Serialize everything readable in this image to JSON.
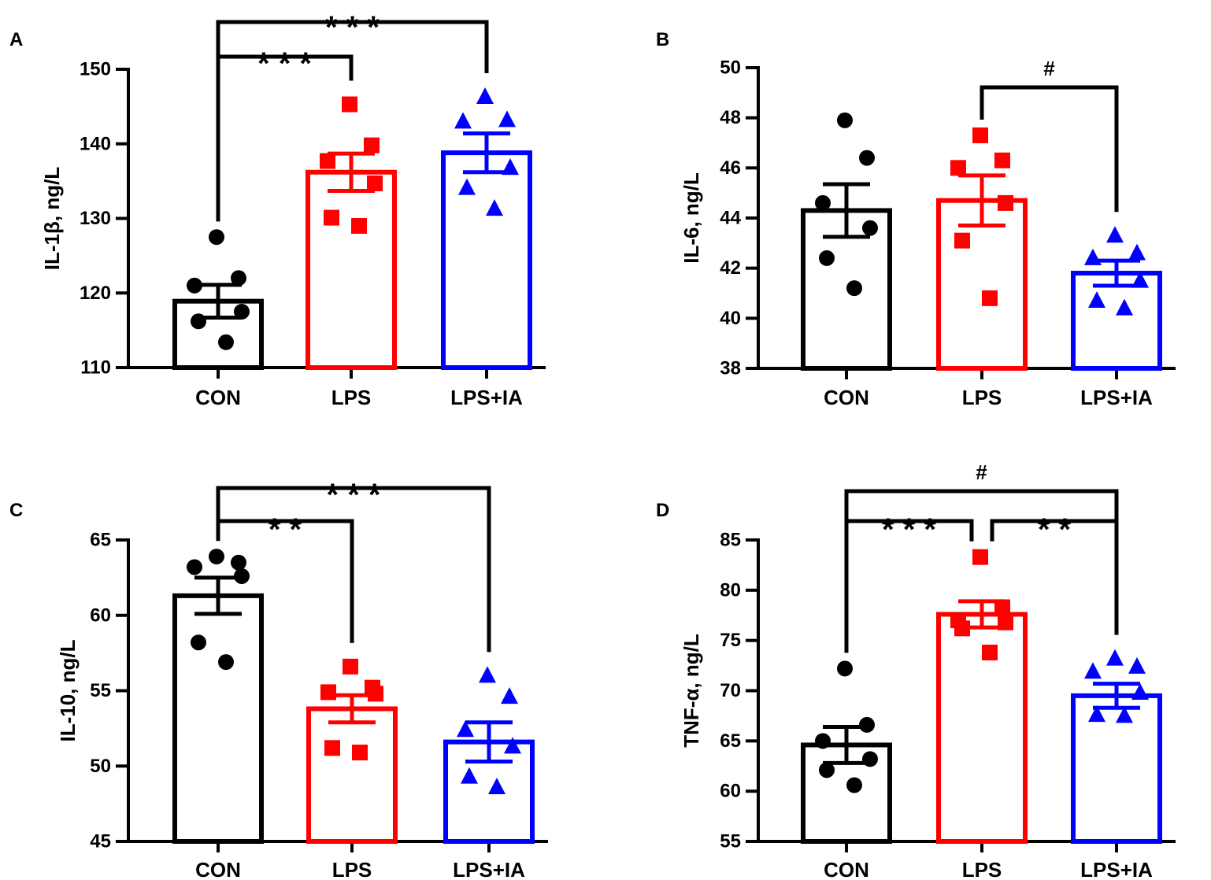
{
  "colors": {
    "CON": "#000000",
    "LPS": "#ff0000",
    "LPS+IA": "#0000ff"
  },
  "chart_data": [
    {
      "type": "bar",
      "panel": "A",
      "ylabel": "IL-1β, ng/L",
      "categories": [
        "CON",
        "LPS",
        "LPS+IA"
      ],
      "values": [
        118.9,
        136.2,
        138.8
      ],
      "sem": [
        2.2,
        2.5,
        2.6
      ],
      "ylim": [
        110,
        150
      ],
      "yticks": [
        110,
        120,
        130,
        140,
        150
      ],
      "points": [
        [
          127.5,
          122.0,
          121.0,
          117.5,
          116.2,
          113.4
        ],
        [
          145.3,
          139.8,
          137.7,
          134.7,
          130.1,
          129.0
        ],
        [
          146.3,
          143.2,
          143.0,
          136.8,
          134.1,
          131.3
        ]
      ],
      "markers": [
        "circle",
        "square",
        "triangle"
      ],
      "comparisons": [
        {
          "from": "CON",
          "to": "LPS",
          "label": "* * *"
        },
        {
          "from": "CON",
          "to": "LPS+IA",
          "label": "* * *"
        }
      ]
    },
    {
      "type": "bar",
      "panel": "B",
      "ylabel": "IL-6, ng/L",
      "categories": [
        "CON",
        "LPS",
        "LPS+IA"
      ],
      "values": [
        44.3,
        44.7,
        41.8
      ],
      "sem": [
        1.05,
        1.0,
        0.5
      ],
      "ylim": [
        38,
        50
      ],
      "yticks": [
        38,
        40,
        42,
        44,
        46,
        48,
        50
      ],
      "points": [
        [
          47.9,
          46.4,
          44.6,
          43.6,
          42.4,
          41.2
        ],
        [
          47.3,
          46.3,
          46.0,
          44.6,
          43.1,
          40.8
        ],
        [
          43.3,
          42.6,
          42.4,
          41.5,
          40.7,
          40.4
        ]
      ],
      "markers": [
        "circle",
        "square",
        "triangle"
      ],
      "comparisons": [
        {
          "from": "LPS",
          "to": "LPS+IA",
          "label": "#"
        }
      ]
    },
    {
      "type": "bar",
      "panel": "C",
      "ylabel": "IL-10, ng/L",
      "categories": [
        "CON",
        "LPS",
        "LPS+IA"
      ],
      "values": [
        61.3,
        53.8,
        51.6
      ],
      "sem": [
        1.2,
        0.9,
        1.3
      ],
      "ylim": [
        45,
        65
      ],
      "yticks": [
        45,
        50,
        55,
        60,
        65
      ],
      "points": [
        [
          63.9,
          63.5,
          63.2,
          62.6,
          58.2,
          56.9
        ],
        [
          56.6,
          55.2,
          54.9,
          54.8,
          51.2,
          50.9
        ],
        [
          56.0,
          54.6,
          52.4,
          51.3,
          49.3,
          48.6
        ]
      ],
      "markers": [
        "circle",
        "square",
        "triangle"
      ],
      "comparisons": [
        {
          "from": "CON",
          "to": "LPS",
          "label": "* *"
        },
        {
          "from": "CON",
          "to": "LPS+IA",
          "label": "* * *"
        }
      ]
    },
    {
      "type": "bar",
      "panel": "D",
      "ylabel": "TNF-α, ng/L",
      "categories": [
        "CON",
        "LPS",
        "LPS+IA"
      ],
      "values": [
        64.6,
        77.6,
        69.5
      ],
      "sem": [
        1.8,
        1.3,
        1.2
      ],
      "ylim": [
        55,
        85
      ],
      "yticks": [
        55,
        60,
        65,
        70,
        75,
        80,
        85
      ],
      "points": [
        [
          72.2,
          66.6,
          65.0,
          63.2,
          62.1,
          60.6
        ],
        [
          83.3,
          78.3,
          77.0,
          76.8,
          76.2,
          73.8
        ],
        [
          73.2,
          72.4,
          71.9,
          69.8,
          67.6,
          67.5
        ]
      ],
      "markers": [
        "circle",
        "square",
        "triangle"
      ],
      "comparisons": [
        {
          "from": "CON",
          "to": "LPS",
          "label": "* * *"
        },
        {
          "from": "LPS",
          "to": "LPS+IA",
          "label": "* *"
        },
        {
          "from": "CON",
          "to": "LPS+IA",
          "label": "#"
        }
      ]
    }
  ]
}
